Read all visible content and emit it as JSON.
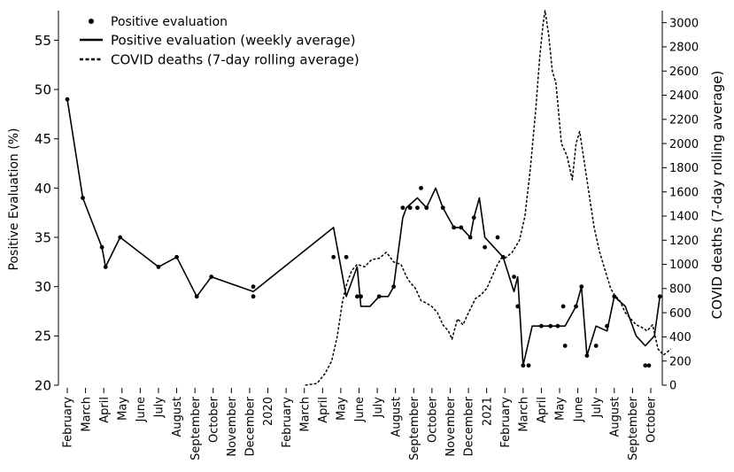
{
  "chart_data": {
    "type": "line",
    "ylabel_left": "Positive Evaluation (%)",
    "ylabel_right": "COVID deaths (7-day rolling average)",
    "ylim_left": [
      20,
      58
    ],
    "ylim_right": [
      0,
      3100
    ],
    "yticks_left": [
      20,
      25,
      30,
      35,
      40,
      45,
      50,
      55
    ],
    "yticks_right": [
      0,
      200,
      400,
      600,
      800,
      1000,
      1200,
      1400,
      1600,
      1800,
      2000,
      2200,
      2400,
      2600,
      2800,
      3000
    ],
    "xlim": [
      0,
      33.1
    ],
    "x_ticks": [
      {
        "x": 0,
        "label": "February"
      },
      {
        "x": 1,
        "label": "March"
      },
      {
        "x": 2,
        "label": "April"
      },
      {
        "x": 3,
        "label": "May"
      },
      {
        "x": 4,
        "label": "June"
      },
      {
        "x": 5,
        "label": "July"
      },
      {
        "x": 6,
        "label": "August"
      },
      {
        "x": 7,
        "label": "September"
      },
      {
        "x": 8,
        "label": "October"
      },
      {
        "x": 9,
        "label": "November"
      },
      {
        "x": 10,
        "label": "December"
      },
      {
        "x": 11,
        "label": "2020"
      },
      {
        "x": 12,
        "label": "February"
      },
      {
        "x": 13,
        "label": "March"
      },
      {
        "x": 14,
        "label": "April"
      },
      {
        "x": 15,
        "label": "May"
      },
      {
        "x": 16,
        "label": "June"
      },
      {
        "x": 17,
        "label": "July"
      },
      {
        "x": 18,
        "label": "August"
      },
      {
        "x": 19,
        "label": "September"
      },
      {
        "x": 20,
        "label": "October"
      },
      {
        "x": 21,
        "label": "November"
      },
      {
        "x": 22,
        "label": "December"
      },
      {
        "x": 23,
        "label": "2021"
      },
      {
        "x": 24,
        "label": "February"
      },
      {
        "x": 25,
        "label": "March"
      },
      {
        "x": 26,
        "label": "April"
      },
      {
        "x": 27,
        "label": "May"
      },
      {
        "x": 28,
        "label": "June"
      },
      {
        "x": 29,
        "label": "July"
      },
      {
        "x": 30,
        "label": "August"
      },
      {
        "x": 31,
        "label": "September"
      },
      {
        "x": 32,
        "label": "October"
      }
    ],
    "legend": {
      "position": "top-left",
      "entries": [
        "Positive evaluation",
        "Positive evaluation (weekly average)",
        "COVID deaths (7-day rolling average)"
      ]
    },
    "series": [
      {
        "name": "Positive evaluation",
        "kind": "points",
        "axis": "left",
        "points": [
          [
            0,
            49
          ],
          [
            0.85,
            39
          ],
          [
            1.9,
            34
          ],
          [
            2.1,
            32
          ],
          [
            2.9,
            35
          ],
          [
            5,
            32
          ],
          [
            6,
            33
          ],
          [
            7.1,
            29
          ],
          [
            7.9,
            31
          ],
          [
            10.2,
            30
          ],
          [
            10.2,
            29
          ],
          [
            14.6,
            33
          ],
          [
            15.3,
            33
          ],
          [
            15.9,
            29
          ],
          [
            16.1,
            29
          ],
          [
            17.1,
            29
          ],
          [
            17.9,
            30
          ],
          [
            18.4,
            38
          ],
          [
            18.8,
            38
          ],
          [
            19.2,
            38
          ],
          [
            19.4,
            40
          ],
          [
            19.7,
            38
          ],
          [
            20.6,
            38
          ],
          [
            21.2,
            36
          ],
          [
            21.6,
            36
          ],
          [
            22.1,
            35
          ],
          [
            22.3,
            37
          ],
          [
            22.9,
            34
          ],
          [
            23.6,
            35
          ],
          [
            23.9,
            33
          ],
          [
            24.5,
            31
          ],
          [
            24.7,
            28
          ],
          [
            25,
            22
          ],
          [
            25.3,
            22
          ],
          [
            26,
            26
          ],
          [
            26.5,
            26
          ],
          [
            26.9,
            26
          ],
          [
            27.2,
            28
          ],
          [
            27.3,
            24
          ],
          [
            27.9,
            28
          ],
          [
            28.2,
            30
          ],
          [
            28.5,
            23
          ],
          [
            29,
            24
          ],
          [
            29.6,
            26
          ],
          [
            30,
            29
          ],
          [
            31.7,
            22
          ],
          [
            31.9,
            22
          ],
          [
            32.5,
            29
          ]
        ]
      },
      {
        "name": "Positive evaluation (weekly average)",
        "kind": "line",
        "axis": "left",
        "points": [
          [
            0,
            49
          ],
          [
            0.85,
            39
          ],
          [
            1.9,
            34
          ],
          [
            2.1,
            32
          ],
          [
            2.9,
            35
          ],
          [
            5,
            32
          ],
          [
            6,
            33
          ],
          [
            7.1,
            29
          ],
          [
            7.9,
            31
          ],
          [
            10.2,
            29.5
          ],
          [
            14.6,
            36
          ],
          [
            15.3,
            29
          ],
          [
            15.9,
            32
          ],
          [
            16.1,
            28
          ],
          [
            16.6,
            28
          ],
          [
            17.1,
            29
          ],
          [
            17.6,
            29
          ],
          [
            17.9,
            30
          ],
          [
            18.4,
            37
          ],
          [
            18.6,
            38
          ],
          [
            19.2,
            39
          ],
          [
            19.7,
            38
          ],
          [
            20.2,
            40
          ],
          [
            20.6,
            38
          ],
          [
            21.2,
            36
          ],
          [
            21.6,
            36
          ],
          [
            22.1,
            35
          ],
          [
            22.3,
            37
          ],
          [
            22.6,
            39
          ],
          [
            22.9,
            35
          ],
          [
            23.4,
            34
          ],
          [
            23.9,
            33
          ],
          [
            24.5,
            29.5
          ],
          [
            24.7,
            31
          ],
          [
            25,
            22
          ],
          [
            25.5,
            26
          ],
          [
            26,
            26
          ],
          [
            26.9,
            26
          ],
          [
            27.3,
            26
          ],
          [
            27.9,
            28
          ],
          [
            28.2,
            30
          ],
          [
            28.5,
            23
          ],
          [
            29,
            26
          ],
          [
            29.6,
            25.5
          ],
          [
            30,
            29
          ],
          [
            30.6,
            28
          ],
          [
            31.2,
            25
          ],
          [
            31.7,
            24
          ],
          [
            32.2,
            25
          ],
          [
            32.5,
            29
          ]
        ]
      },
      {
        "name": "COVID deaths (7-day rolling average)",
        "kind": "dashed-line",
        "axis": "right",
        "points": [
          [
            13.05,
            0
          ],
          [
            13.7,
            15
          ],
          [
            14.15,
            100
          ],
          [
            14.5,
            200
          ],
          [
            14.8,
            400
          ],
          [
            15.1,
            700
          ],
          [
            15.35,
            850
          ],
          [
            15.6,
            950
          ],
          [
            15.9,
            1000
          ],
          [
            16.3,
            980
          ],
          [
            16.7,
            1040
          ],
          [
            17.1,
            1050
          ],
          [
            17.5,
            1100
          ],
          [
            17.9,
            1020
          ],
          [
            18.3,
            1000
          ],
          [
            18.6,
            900
          ],
          [
            18.8,
            850
          ],
          [
            19.1,
            800
          ],
          [
            19.4,
            700
          ],
          [
            19.7,
            680
          ],
          [
            20,
            650
          ],
          [
            20.3,
            600
          ],
          [
            20.6,
            500
          ],
          [
            20.9,
            450
          ],
          [
            21.1,
            380
          ],
          [
            21.4,
            550
          ],
          [
            21.7,
            500
          ],
          [
            22,
            600
          ],
          [
            22.4,
            720
          ],
          [
            22.7,
            750
          ],
          [
            23,
            800
          ],
          [
            23.3,
            900
          ],
          [
            23.6,
            1000
          ],
          [
            23.8,
            1050
          ],
          [
            24,
            1050
          ],
          [
            24.4,
            1100
          ],
          [
            24.8,
            1200
          ],
          [
            25.1,
            1400
          ],
          [
            25.4,
            1800
          ],
          [
            25.7,
            2300
          ],
          [
            25.9,
            2700
          ],
          [
            26.1,
            3000
          ],
          [
            26.2,
            3100
          ],
          [
            26.4,
            2900
          ],
          [
            26.6,
            2600
          ],
          [
            26.8,
            2500
          ],
          [
            27.1,
            2000
          ],
          [
            27.4,
            1900
          ],
          [
            27.7,
            1700
          ],
          [
            27.9,
            2000
          ],
          [
            28.1,
            2100
          ],
          [
            28.4,
            1800
          ],
          [
            28.7,
            1500
          ],
          [
            28.9,
            1300
          ],
          [
            29.2,
            1100
          ],
          [
            29.5,
            950
          ],
          [
            29.8,
            800
          ],
          [
            30,
            750
          ],
          [
            30.3,
            700
          ],
          [
            30.6,
            600
          ],
          [
            30.9,
            550
          ],
          [
            31.2,
            500
          ],
          [
            31.5,
            480
          ],
          [
            31.8,
            450
          ],
          [
            32.1,
            500
          ],
          [
            32.4,
            300
          ],
          [
            32.7,
            250
          ],
          [
            33.1,
            300
          ]
        ]
      }
    ]
  }
}
